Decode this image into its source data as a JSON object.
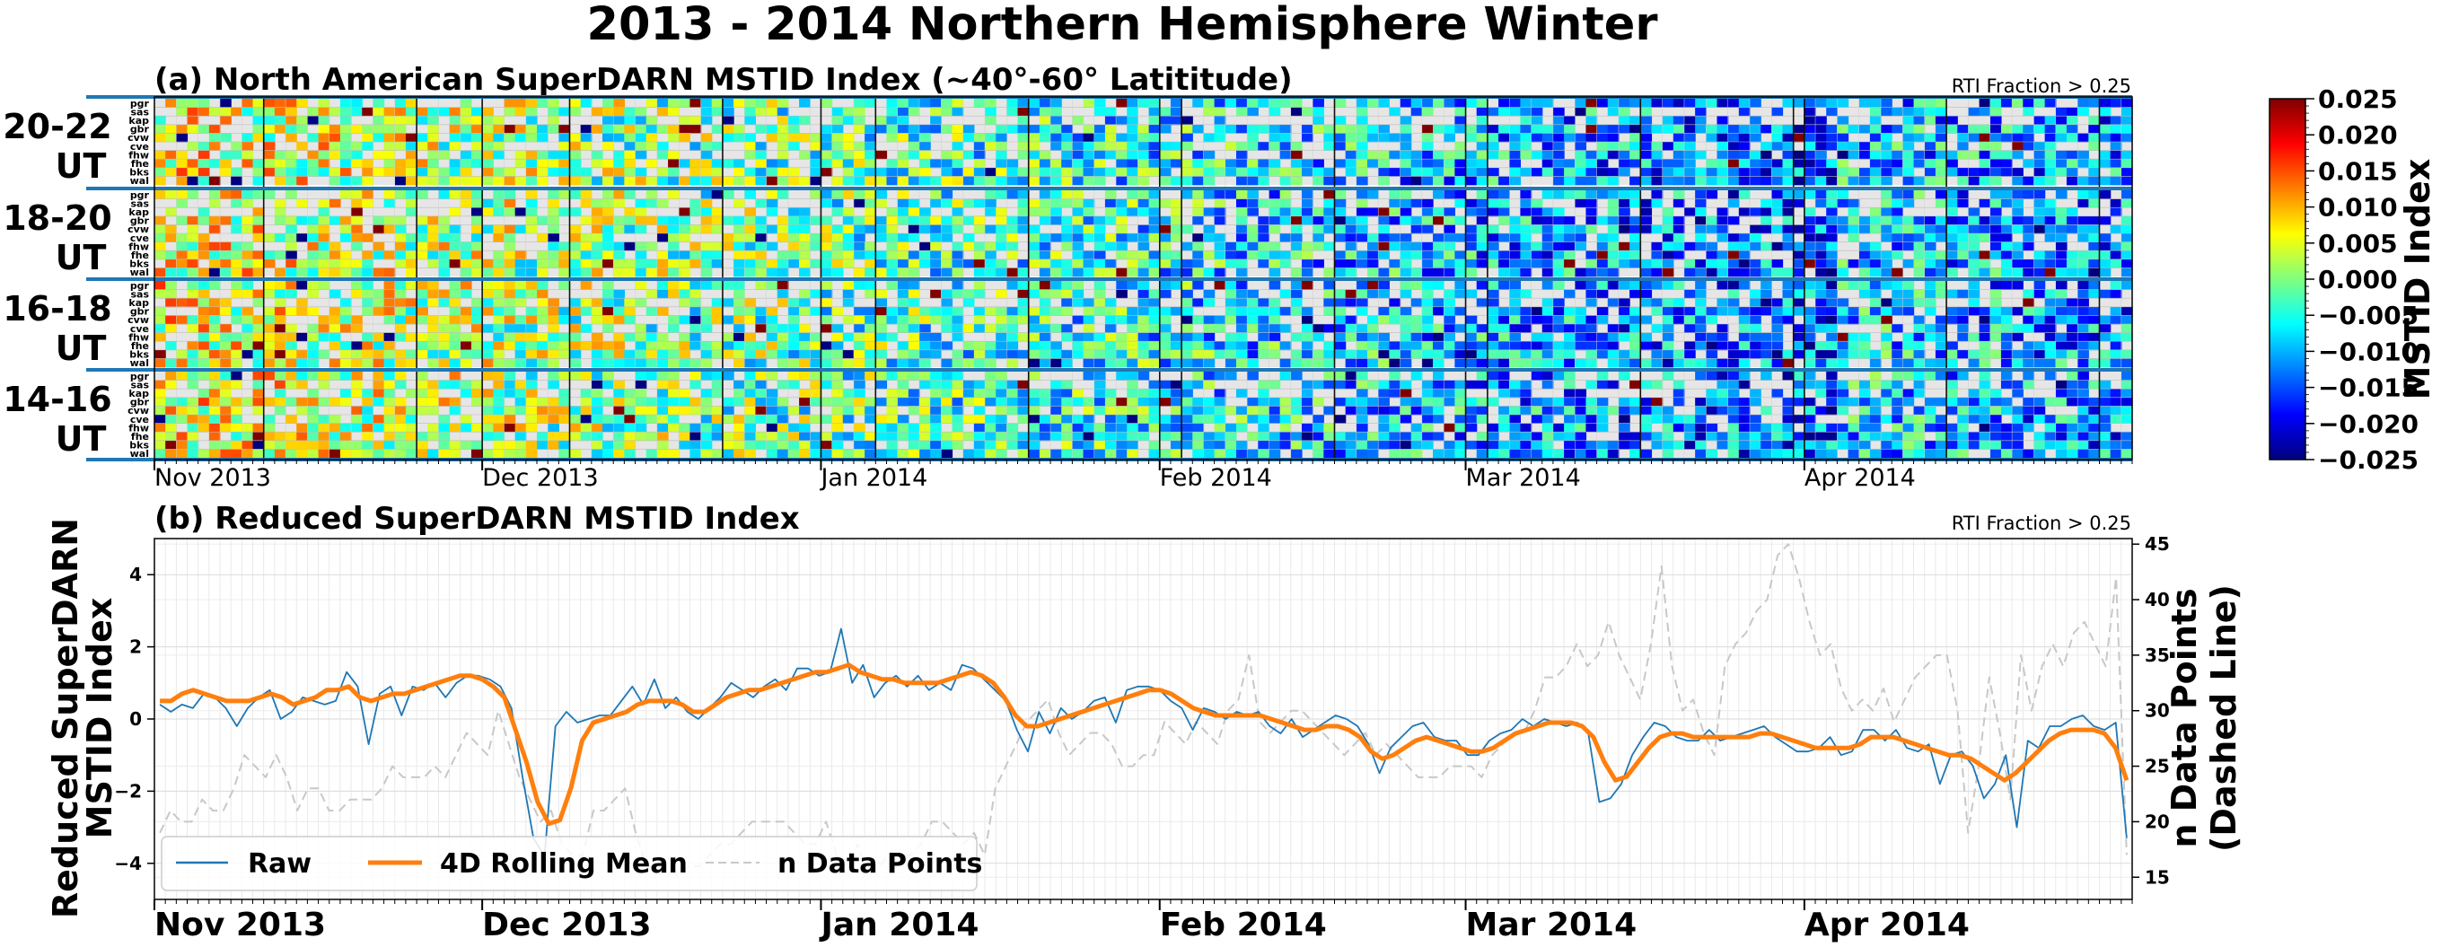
{
  "title": "2013 - 2014 Northern Hemisphere Winter",
  "panel_a": {
    "title": "(a) North American SuperDARN MSTID Index (~40°-60° Latititude)",
    "note": "RTI Fraction > 0.25",
    "row_labels": [
      [
        "20-22",
        "UT"
      ],
      [
        "18-20",
        "UT"
      ],
      [
        "16-18",
        "UT"
      ],
      [
        "14-16",
        "UT"
      ]
    ],
    "radars": [
      "pgr",
      "sas",
      "kap",
      "gbr",
      "cvw",
      "cve",
      "fhw",
      "fhe",
      "bks",
      "wal"
    ],
    "month_labels": [
      "Nov 2013",
      "Dec 2013",
      "Jan 2014",
      "Feb 2014",
      "Mar 2014",
      "Apr 2014"
    ]
  },
  "colorbar": {
    "label": "MSTID Index",
    "ticks": [
      "0.025",
      "0.020",
      "0.015",
      "0.010",
      "0.005",
      "0.000",
      "−0.005",
      "−0.010",
      "−0.015",
      "−0.020",
      "−0.025"
    ],
    "range": [
      -0.025,
      0.025
    ],
    "colormap": "jet"
  },
  "panel_b": {
    "title": "(b) Reduced SuperDARN MSTID Index",
    "note": "RTI Fraction > 0.25",
    "ylabel_left": [
      "Reduced SuperDARN",
      "MSTID Index"
    ],
    "ylabel_right": [
      "n Data Points",
      "(Dashed Line)"
    ],
    "left_ticks": [
      "4",
      "2",
      "0",
      "−2",
      "−4"
    ],
    "right_ticks": [
      "45",
      "40",
      "35",
      "30",
      "25",
      "20",
      "15"
    ],
    "month_labels": [
      "Nov 2013",
      "Dec 2013",
      "Jan 2014",
      "Feb 2014",
      "Mar 2014",
      "Apr 2014"
    ],
    "legend": [
      "Raw",
      "4D Rolling Mean",
      "n Data Points"
    ]
  },
  "chart_data": [
    {
      "type": "heatmap",
      "title": "(a) North American SuperDARN MSTID Index (~40°-60° Latititude)",
      "x_range": [
        "2013-11-01",
        "2014-05-01"
      ],
      "rows": [
        "20-22 UT",
        "18-20 UT",
        "16-18 UT",
        "14-16 UT"
      ],
      "radars": [
        "pgr",
        "sas",
        "kap",
        "gbr",
        "cvw",
        "cve",
        "fhw",
        "fhe",
        "bks",
        "wal"
      ],
      "value_range": [
        -0.025,
        0.025
      ],
      "colormap": "jet",
      "missing_color": "#e6e6e6",
      "grid": true,
      "trend": "mostly positive (yellow/red) in Nov-Jan, shifting to negative (blue) Feb-Apr"
    },
    {
      "type": "line",
      "title": "(b) Reduced SuperDARN MSTID Index",
      "x_range": [
        "2013-11-01",
        "2014-05-01"
      ],
      "ylim": [
        -5,
        5
      ],
      "y2lim": [
        13,
        45.5
      ],
      "grid": true,
      "legend_position": "lower-left",
      "series": [
        {
          "name": "Raw",
          "color": "#1f77b4",
          "axis": "left",
          "style": "solid",
          "values": [
            0.4,
            0.2,
            0.4,
            0.3,
            0.7,
            0.6,
            0.3,
            -0.2,
            0.3,
            0.6,
            0.8,
            0.0,
            0.2,
            0.6,
            0.5,
            0.4,
            0.5,
            1.3,
            0.9,
            -0.7,
            0.7,
            0.9,
            0.1,
            0.9,
            0.8,
            1.0,
            0.6,
            1.0,
            1.2,
            1.2,
            1.1,
            0.9,
            0.3,
            -1.6,
            -3.3,
            -3.8,
            -0.2,
            0.2,
            -0.1,
            0.0,
            0.1,
            0.1,
            0.5,
            0.9,
            0.4,
            1.1,
            0.3,
            0.6,
            0.2,
            0.0,
            0.3,
            0.6,
            1.0,
            0.8,
            0.6,
            0.9,
            1.1,
            0.8,
            1.4,
            1.4,
            1.2,
            1.3,
            2.5,
            1.0,
            1.5,
            0.6,
            1.0,
            1.2,
            0.9,
            1.2,
            0.8,
            1.0,
            0.8,
            1.5,
            1.4,
            1.1,
            0.8,
            0.5,
            -0.3,
            -0.9,
            0.2,
            -0.4,
            0.3,
            0.0,
            0.2,
            0.5,
            0.6,
            -0.1,
            0.8,
            0.9,
            0.9,
            0.8,
            0.5,
            0.3,
            -0.3,
            0.3,
            0.2,
            0.0,
            0.2,
            0.1,
            0.2,
            -0.2,
            -0.4,
            0.0,
            -0.5,
            -0.3,
            -0.1,
            0.1,
            0.0,
            -0.2,
            -0.7,
            -1.5,
            -0.8,
            -0.5,
            -0.2,
            -0.1,
            -0.5,
            -0.6,
            -0.6,
            -1.0,
            -1.0,
            -0.6,
            -0.4,
            -0.3,
            0.0,
            -0.2,
            0.0,
            -0.1,
            -0.2,
            -0.1,
            -0.4,
            -2.3,
            -2.2,
            -1.8,
            -1.0,
            -0.5,
            -0.1,
            -0.2,
            -0.5,
            -0.6,
            -0.6,
            -0.3,
            -0.6,
            -0.5,
            -0.4,
            -0.3,
            -0.2,
            -0.5,
            -0.7,
            -0.9,
            -0.9,
            -0.8,
            -0.5,
            -1.0,
            -0.9,
            -0.3,
            -0.3,
            -0.6,
            -0.3,
            -0.8,
            -0.9,
            -0.7,
            -1.8,
            -1.0,
            -0.9,
            -1.3,
            -2.2,
            -1.8,
            -1.0,
            -3.0,
            -0.6,
            -0.8,
            -0.2,
            -0.2,
            0.0,
            0.1,
            -0.2,
            -0.3,
            -0.1,
            -3.3
          ]
        },
        {
          "name": "4D Rolling Mean",
          "color": "#ff7f0e",
          "axis": "left",
          "style": "solid",
          "values": [
            0.5,
            0.5,
            0.7,
            0.8,
            0.7,
            0.6,
            0.5,
            0.5,
            0.5,
            0.6,
            0.7,
            0.6,
            0.4,
            0.5,
            0.6,
            0.8,
            0.8,
            0.9,
            0.6,
            0.5,
            0.6,
            0.7,
            0.7,
            0.8,
            0.9,
            1.0,
            1.1,
            1.2,
            1.2,
            1.1,
            0.9,
            0.6,
            -0.3,
            -1.2,
            -2.3,
            -2.9,
            -2.8,
            -1.9,
            -0.6,
            -0.1,
            0.0,
            0.1,
            0.2,
            0.4,
            0.5,
            0.5,
            0.5,
            0.4,
            0.2,
            0.2,
            0.4,
            0.6,
            0.7,
            0.8,
            0.8,
            0.9,
            1.0,
            1.1,
            1.2,
            1.3,
            1.3,
            1.4,
            1.5,
            1.3,
            1.2,
            1.1,
            1.1,
            1.0,
            1.0,
            1.0,
            1.0,
            1.1,
            1.2,
            1.3,
            1.2,
            1.0,
            0.6,
            0.1,
            -0.2,
            -0.2,
            -0.1,
            0.0,
            0.1,
            0.2,
            0.3,
            0.4,
            0.5,
            0.6,
            0.7,
            0.8,
            0.8,
            0.7,
            0.5,
            0.3,
            0.2,
            0.1,
            0.1,
            0.1,
            0.1,
            0.1,
            0.0,
            -0.1,
            -0.2,
            -0.3,
            -0.3,
            -0.2,
            -0.2,
            -0.3,
            -0.5,
            -0.9,
            -1.1,
            -1.0,
            -0.8,
            -0.6,
            -0.5,
            -0.6,
            -0.7,
            -0.8,
            -0.9,
            -0.9,
            -0.8,
            -0.6,
            -0.4,
            -0.3,
            -0.2,
            -0.1,
            -0.1,
            -0.1,
            -0.2,
            -0.5,
            -1.2,
            -1.7,
            -1.6,
            -1.2,
            -0.8,
            -0.5,
            -0.4,
            -0.4,
            -0.5,
            -0.5,
            -0.5,
            -0.5,
            -0.5,
            -0.5,
            -0.4,
            -0.4,
            -0.5,
            -0.6,
            -0.7,
            -0.8,
            -0.8,
            -0.8,
            -0.8,
            -0.7,
            -0.5,
            -0.5,
            -0.5,
            -0.6,
            -0.7,
            -0.8,
            -0.9,
            -1.0,
            -1.0,
            -1.1,
            -1.3,
            -1.5,
            -1.7,
            -1.5,
            -1.2,
            -0.9,
            -0.6,
            -0.4,
            -0.3,
            -0.3,
            -0.3,
            -0.4,
            -0.8,
            -1.7
          ]
        },
        {
          "name": "n Data Points",
          "color": "#c8c8c8",
          "axis": "right",
          "style": "dashed",
          "values": [
            19,
            21,
            20,
            20,
            22,
            21,
            21,
            23,
            26,
            25,
            24,
            26,
            24,
            21,
            23,
            23,
            21,
            21,
            22,
            22,
            22,
            23,
            25,
            24,
            24,
            24,
            25,
            24,
            26,
            28,
            27,
            26,
            30,
            27,
            24,
            22,
            20,
            21,
            18,
            17,
            17,
            21,
            21,
            22,
            23,
            19,
            16,
            16,
            17,
            15,
            16,
            16,
            17,
            18,
            18,
            19,
            20,
            20,
            20,
            20,
            19,
            18,
            18,
            20,
            17,
            16,
            18,
            15,
            16,
            17,
            17,
            17,
            18,
            20,
            20,
            19,
            18,
            19,
            17,
            23,
            25,
            27,
            29,
            30,
            31,
            28,
            26,
            27,
            28,
            28,
            27,
            25,
            25,
            26,
            26,
            29,
            28,
            27,
            29,
            28,
            27,
            30,
            31,
            35,
            29,
            28,
            29,
            30,
            30,
            29,
            28,
            27,
            26,
            27,
            28,
            26,
            27,
            26,
            25,
            24,
            24,
            24,
            25,
            25,
            25,
            24,
            26,
            27,
            28,
            28,
            30,
            33,
            33,
            34,
            36,
            34,
            35,
            38,
            35,
            33,
            31,
            36,
            43,
            34,
            30,
            31,
            28,
            26,
            34,
            36,
            37,
            39,
            40,
            44,
            45,
            42,
            38,
            35,
            36,
            32,
            30,
            31,
            30,
            32,
            29,
            31,
            33,
            34,
            35,
            35,
            30,
            19,
            25,
            33,
            28,
            22,
            35,
            30,
            34,
            36,
            34,
            37,
            38,
            36,
            34,
            42,
            17
          ]
        }
      ]
    }
  ]
}
